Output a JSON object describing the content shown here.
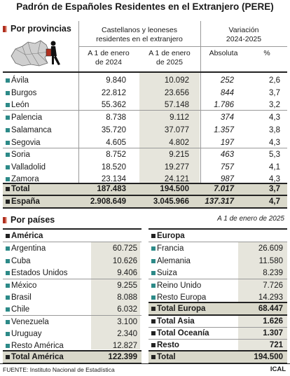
{
  "title": "Padrón de Españoles Residentes en el Extranjero (PERE)",
  "provincias": {
    "section_label": "Por provincias",
    "col_group1": "Castellanos y leoneses\nresidentes en el extranjero",
    "col_group2": "Variación\n2024-2025",
    "col_2024": "A 1 de enero\nde 2024",
    "col_2025": "A 1 de enero\nde 2025",
    "col_abs": "Absoluta",
    "col_pct": "%",
    "rows": [
      {
        "name": "Ávila",
        "v2024": "9.840",
        "v2025": "10.092",
        "abs": "252",
        "pct": "2,6"
      },
      {
        "name": "Burgos",
        "v2024": "22.812",
        "v2025": "23.656",
        "abs": "844",
        "pct": "3,7"
      },
      {
        "name": "León",
        "v2024": "55.362",
        "v2025": "57.148",
        "abs": "1.786",
        "pct": "3,2"
      },
      {
        "name": "Palencia",
        "v2024": "8.738",
        "v2025": "9.112",
        "abs": "374",
        "pct": "4,3"
      },
      {
        "name": "Salamanca",
        "v2024": "35.720",
        "v2025": "37.077",
        "abs": "1.357",
        "pct": "3,8"
      },
      {
        "name": "Segovia",
        "v2024": "4.605",
        "v2025": "4.802",
        "abs": "197",
        "pct": "4,3"
      },
      {
        "name": "Soria",
        "v2024": "8.752",
        "v2025": "9.215",
        "abs": "463",
        "pct": "5,3"
      },
      {
        "name": "Valladolid",
        "v2024": "18.520",
        "v2025": "19.277",
        "abs": "757",
        "pct": "4,1"
      },
      {
        "name": "Zamora",
        "v2024": "23.134",
        "v2025": "24.121",
        "abs": "987",
        "pct": "4,3"
      }
    ],
    "total": {
      "name": "Total",
      "v2024": "187.483",
      "v2025": "194.500",
      "abs": "7.017",
      "pct": "3,7"
    },
    "espana": {
      "name": "España",
      "v2024": "2.908.649",
      "v2025": "3.045.966",
      "abs": "137.317",
      "pct": "4,7"
    }
  },
  "paises": {
    "section_label": "Por países",
    "date_note": "A 1 de enero de 2025",
    "america": {
      "header": "América",
      "rows": [
        {
          "name": "Argentina",
          "value": "60.725"
        },
        {
          "name": "Cuba",
          "value": "10.626"
        },
        {
          "name": "Estados Unidos",
          "value": "9.406"
        },
        {
          "name": "México",
          "value": "9.255"
        },
        {
          "name": "Brasil",
          "value": "8.088"
        },
        {
          "name": "Chile",
          "value": "6.032"
        },
        {
          "name": "Venezuela",
          "value": "3.100"
        },
        {
          "name": "Uruguay",
          "value": "2.340"
        },
        {
          "name": "Resto América",
          "value": "12.827"
        }
      ],
      "total": {
        "name": "Total América",
        "value": "122.399"
      }
    },
    "europa": {
      "header": "Europa",
      "rows": [
        {
          "name": "Francia",
          "value": "26.609"
        },
        {
          "name": "Alemania",
          "value": "11.580"
        },
        {
          "name": "Suiza",
          "value": "8.239"
        },
        {
          "name": "Reino Unido",
          "value": "7.726"
        },
        {
          "name": "Resto Europa",
          "value": "14.293"
        }
      ],
      "total": {
        "name": "Total Europa",
        "value": "68.447"
      },
      "extra": [
        {
          "name": "Total Asia",
          "value": "1.626"
        },
        {
          "name": "Total Oceanía",
          "value": "1.307"
        },
        {
          "name": "Resto",
          "value": "721"
        }
      ],
      "grand_total": {
        "name": "Total",
        "value": "194.500"
      }
    }
  },
  "source": "FUENTE: Instituto Nacional de Estadística",
  "brand": "ICAL",
  "colors": {
    "accent": "#b03020",
    "teal": "#2d8a88",
    "shade": "#e6e5dc",
    "total_band": "#d9d8ca"
  }
}
